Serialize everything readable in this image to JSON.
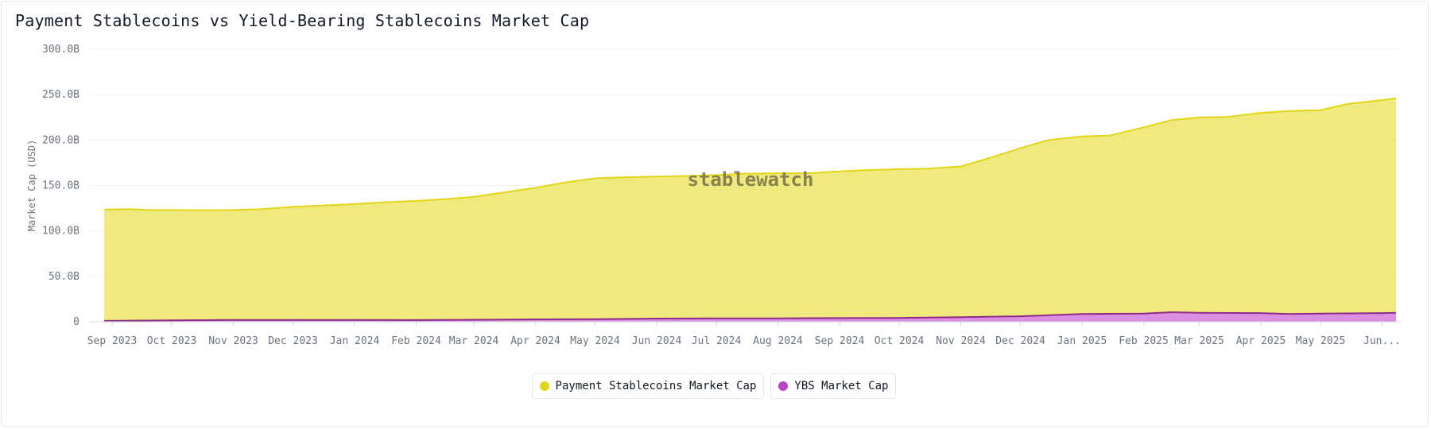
{
  "title": "Payment Stablecoins vs Yield-Bearing Stablecoins Market Cap",
  "watermark": "stablewatch",
  "legend": {
    "items": [
      {
        "label": "Payment Stablecoins Market Cap",
        "color": "#e2d51a"
      },
      {
        "label": "YBS Market Cap",
        "color": "#b845c8"
      }
    ]
  },
  "chart_data": {
    "type": "area",
    "title": "Payment Stablecoins vs Yield-Bearing Stablecoins Market Cap",
    "xlabel": "",
    "ylabel": "Market Cap (USD)",
    "ylim": [
      0,
      300
    ],
    "y_unit": "B",
    "y_ticks": [
      {
        "value": 0,
        "label": "0"
      },
      {
        "value": 50,
        "label": "50.0B"
      },
      {
        "value": 100,
        "label": "100.0B"
      },
      {
        "value": 150,
        "label": "150.0B"
      },
      {
        "value": 200,
        "label": "200.0B"
      },
      {
        "value": 250,
        "label": "250.0B"
      },
      {
        "value": 300,
        "label": "300.0B"
      }
    ],
    "x_range": [
      "2023-08-28",
      "2025-06-08"
    ],
    "x_ticks": [
      {
        "date": "2023-09-01",
        "label": "Sep 2023"
      },
      {
        "date": "2023-10-01",
        "label": "Oct 2023"
      },
      {
        "date": "2023-11-01",
        "label": "Nov 2023"
      },
      {
        "date": "2023-12-01",
        "label": "Dec 2023"
      },
      {
        "date": "2024-01-01",
        "label": "Jan 2024"
      },
      {
        "date": "2024-02-01",
        "label": "Feb 2024"
      },
      {
        "date": "2024-03-01",
        "label": "Mar 2024"
      },
      {
        "date": "2024-04-01",
        "label": "Apr 2024"
      },
      {
        "date": "2024-05-01",
        "label": "May 2024"
      },
      {
        "date": "2024-06-01",
        "label": "Jun 2024"
      },
      {
        "date": "2024-07-01",
        "label": "Jul 2024"
      },
      {
        "date": "2024-08-01",
        "label": "Aug 2024"
      },
      {
        "date": "2024-09-01",
        "label": "Sep 2024"
      },
      {
        "date": "2024-10-01",
        "label": "Oct 2024"
      },
      {
        "date": "2024-11-01",
        "label": "Nov 2024"
      },
      {
        "date": "2024-12-01",
        "label": "Dec 2024"
      },
      {
        "date": "2025-01-01",
        "label": "Jan 2025"
      },
      {
        "date": "2025-02-01",
        "label": "Feb 2025"
      },
      {
        "date": "2025-03-01",
        "label": "Mar 2025"
      },
      {
        "date": "2025-04-01",
        "label": "Apr 2025"
      },
      {
        "date": "2025-05-01",
        "label": "May 2025"
      },
      {
        "date": "2025-06-01",
        "label": "Jun..."
      }
    ],
    "grid": true,
    "legend_position": "bottom-center",
    "series": [
      {
        "name": "Payment Stablecoins Market Cap",
        "color": "#e2d51a",
        "fill": "#f0e97e",
        "points": [
          [
            "2023-08-28",
            123.5
          ],
          [
            "2023-09-10",
            124.0
          ],
          [
            "2023-09-20",
            123.0
          ],
          [
            "2023-10-01",
            123.0
          ],
          [
            "2023-10-15",
            122.8
          ],
          [
            "2023-11-01",
            123.0
          ],
          [
            "2023-11-15",
            124.0
          ],
          [
            "2023-12-01",
            126.5
          ],
          [
            "2023-12-15",
            128.0
          ],
          [
            "2024-01-01",
            129.5
          ],
          [
            "2024-01-15",
            131.5
          ],
          [
            "2024-02-01",
            133.0
          ],
          [
            "2024-02-15",
            135.0
          ],
          [
            "2024-03-01",
            137.5
          ],
          [
            "2024-03-15",
            142.0
          ],
          [
            "2024-04-01",
            147.5
          ],
          [
            "2024-04-15",
            153.0
          ],
          [
            "2024-05-01",
            158.0
          ],
          [
            "2024-05-15",
            159.0
          ],
          [
            "2024-06-01",
            159.8
          ],
          [
            "2024-06-15",
            160.5
          ],
          [
            "2024-07-01",
            161.5
          ],
          [
            "2024-07-15",
            163.0
          ],
          [
            "2024-08-01",
            163.5
          ],
          [
            "2024-08-15",
            163.5
          ],
          [
            "2024-09-01",
            165.5
          ],
          [
            "2024-09-15",
            167.0
          ],
          [
            "2024-10-01",
            168.0
          ],
          [
            "2024-10-15",
            168.5
          ],
          [
            "2024-11-01",
            171.0
          ],
          [
            "2024-11-15",
            180.0
          ],
          [
            "2024-12-01",
            191.0
          ],
          [
            "2024-12-15",
            200.0
          ],
          [
            "2025-01-01",
            204.0
          ],
          [
            "2025-01-15",
            205.0
          ],
          [
            "2025-02-01",
            214.0
          ],
          [
            "2025-02-15",
            222.0
          ],
          [
            "2025-03-01",
            225.0
          ],
          [
            "2025-03-15",
            225.5
          ],
          [
            "2025-04-01",
            230.0
          ],
          [
            "2025-04-15",
            232.0
          ],
          [
            "2025-05-01",
            233.0
          ],
          [
            "2025-05-15",
            240.0
          ],
          [
            "2025-06-01",
            244.0
          ],
          [
            "2025-06-08",
            246.0
          ]
        ]
      },
      {
        "name": "YBS Market Cap",
        "color": "#8e2a8a",
        "fill": "#dc8fe0",
        "points": [
          [
            "2023-08-28",
            1.0
          ],
          [
            "2023-10-01",
            1.5
          ],
          [
            "2023-11-01",
            2.0
          ],
          [
            "2023-12-01",
            2.0
          ],
          [
            "2024-01-01",
            2.0
          ],
          [
            "2024-02-01",
            1.8
          ],
          [
            "2024-03-01",
            2.2
          ],
          [
            "2024-04-01",
            2.6
          ],
          [
            "2024-05-01",
            2.8
          ],
          [
            "2024-06-01",
            3.5
          ],
          [
            "2024-07-01",
            3.8
          ],
          [
            "2024-08-01",
            3.8
          ],
          [
            "2024-09-01",
            4.0
          ],
          [
            "2024-10-01",
            4.2
          ],
          [
            "2024-11-01",
            5.0
          ],
          [
            "2024-12-01",
            6.0
          ],
          [
            "2025-01-01",
            8.5
          ],
          [
            "2025-02-01",
            9.0
          ],
          [
            "2025-02-15",
            10.5
          ],
          [
            "2025-03-01",
            9.8
          ],
          [
            "2025-04-01",
            9.5
          ],
          [
            "2025-04-15",
            8.5
          ],
          [
            "2025-05-01",
            9.0
          ],
          [
            "2025-06-01",
            9.5
          ],
          [
            "2025-06-08",
            9.8
          ]
        ]
      }
    ]
  }
}
